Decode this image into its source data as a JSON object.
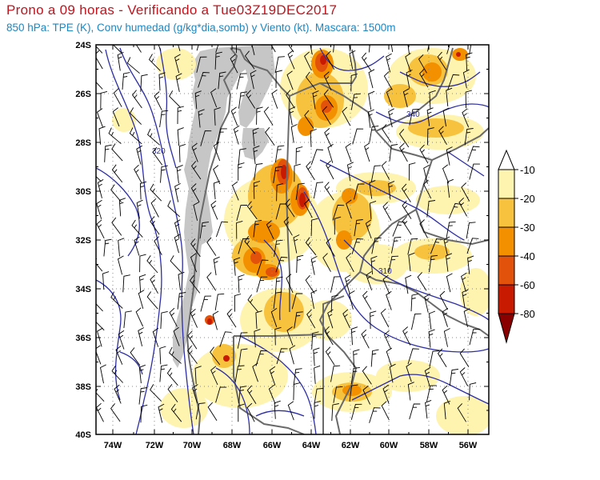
{
  "title": "Prono a 09 horas - Verificando a Tue03Z19DEC2017",
  "subtitle": "850 hPa: TPE (K), Conv humedad (g/kg*dia,somb) y Viento (kt). Mascara: 1500m",
  "lat_labels": [
    "24S",
    "26S",
    "28S",
    "30S",
    "32S",
    "34S",
    "36S",
    "38S",
    "40S"
  ],
  "lon_labels": [
    "74W",
    "72W",
    "70W",
    "68W",
    "66W",
    "64W",
    "62W",
    "60W",
    "58W",
    "56W"
  ],
  "colorbar": {
    "labels": [
      "-10",
      "-20",
      "-30",
      "-40",
      "-60",
      "-80"
    ],
    "colors": [
      "#ffffff",
      "#fff3b0",
      "#f7c23e",
      "#f39000",
      "#e3520a",
      "#c81a00",
      "#8a0000"
    ]
  },
  "contour_labels": [
    "320",
    "340",
    "310"
  ],
  "colors": {
    "contour": "#2e2ea3",
    "mask": "#c6c6c6",
    "border": "#6a6a6a"
  }
}
